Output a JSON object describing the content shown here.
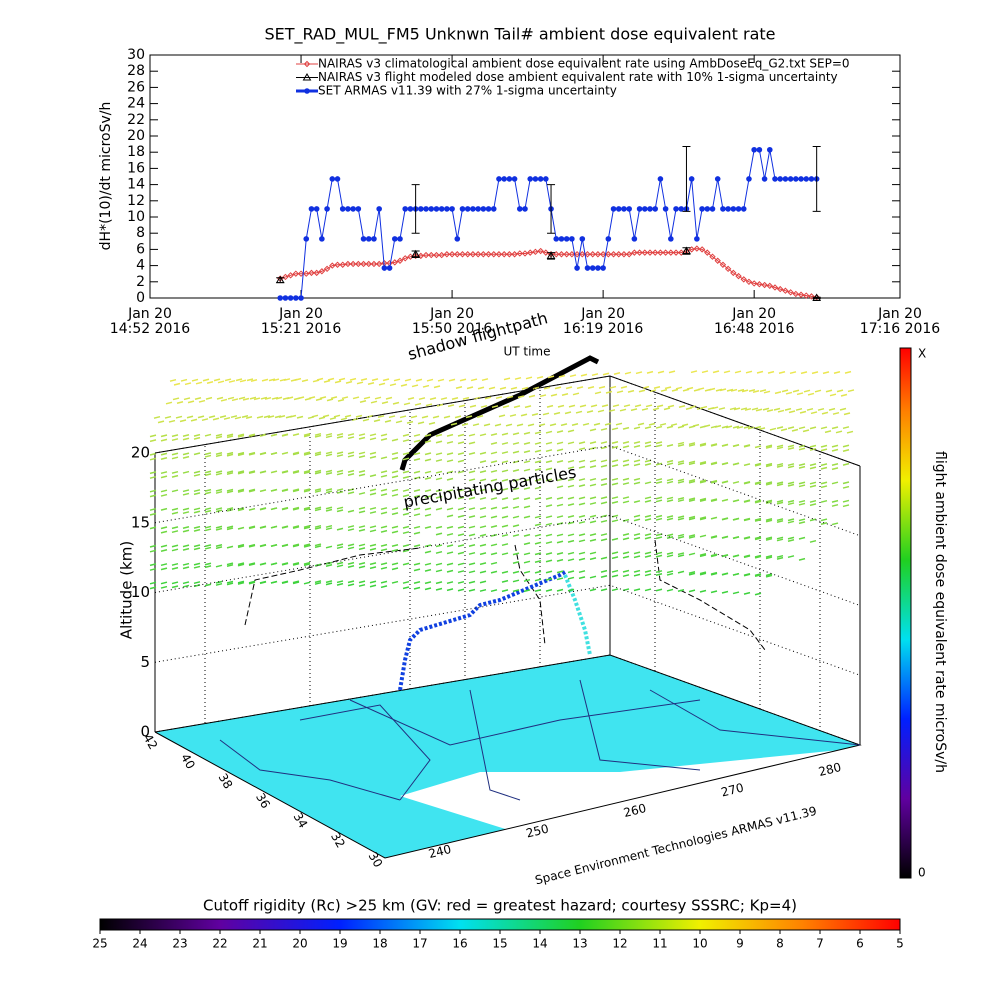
{
  "chart_data": {
    "type": "line",
    "title": "SET_RAD_MUL_FM5 Unknwn Tail#  ambient dose equivalent rate",
    "y_label": "dH*(10)/dt microSv/h",
    "x_label": "UT time",
    "x": [
      "15:17",
      "15:18",
      "15:19",
      "15:20",
      "15:21",
      "15:22",
      "15:23",
      "15:24",
      "15:25",
      "15:26",
      "15:27",
      "15:28",
      "15:29",
      "15:30",
      "15:31",
      "15:32",
      "15:33",
      "15:34",
      "15:35",
      "15:36",
      "15:37",
      "15:38",
      "15:39",
      "15:40",
      "15:41",
      "15:42",
      "15:43",
      "15:44",
      "15:45",
      "15:46",
      "15:47",
      "15:48",
      "15:49",
      "15:50",
      "15:51",
      "15:52",
      "15:53",
      "15:54",
      "15:55",
      "15:56",
      "15:57",
      "15:58",
      "15:59",
      "16:00",
      "16:01",
      "16:02",
      "16:03",
      "16:04",
      "16:05",
      "16:06",
      "16:07",
      "16:08",
      "16:09",
      "16:10",
      "16:11",
      "16:12",
      "16:13",
      "16:14",
      "16:15",
      "16:16",
      "16:17",
      "16:18",
      "16:19",
      "16:20",
      "16:21",
      "16:22",
      "16:23",
      "16:24",
      "16:25",
      "16:26",
      "16:27",
      "16:28",
      "16:29",
      "16:30",
      "16:31",
      "16:32",
      "16:33",
      "16:34",
      "16:35",
      "16:36",
      "16:37",
      "16:38",
      "16:39",
      "16:40",
      "16:41",
      "16:42",
      "16:43",
      "16:44",
      "16:45",
      "16:46",
      "16:47",
      "16:48",
      "16:49",
      "16:50",
      "16:51",
      "16:52",
      "16:53",
      "16:54",
      "16:55",
      "16:56",
      "16:57",
      "16:58",
      "16:59",
      "17:00"
    ],
    "xlim": [
      "14:52",
      "17:16"
    ],
    "xticks": [
      {
        "value": "14:52",
        "label": [
          "Jan 20",
          "14:52 2016"
        ]
      },
      {
        "value": "15:21",
        "label": [
          "Jan 20",
          "15:21 2016"
        ]
      },
      {
        "value": "15:50",
        "label": [
          "Jan 20",
          "15:50 2016"
        ]
      },
      {
        "value": "16:19",
        "label": [
          "Jan 20",
          "16:19 2016"
        ]
      },
      {
        "value": "16:48",
        "label": [
          "Jan 20",
          "16:48 2016"
        ]
      },
      {
        "value": "17:16",
        "label": [
          "Jan 20",
          "17:16 2016"
        ]
      }
    ],
    "ylim": [
      0,
      30
    ],
    "yticks": [
      0,
      2,
      4,
      6,
      8,
      10,
      12,
      14,
      16,
      18,
      20,
      22,
      24,
      26,
      28,
      30
    ],
    "series": [
      {
        "name": "NAIRAS v3 climatological ambient dose equivalent rate using AmbDoseEq_G2.txt SEP=0",
        "color": "#e04040",
        "marker": "diamond",
        "line": true,
        "values": [
          2.4,
          2.6,
          2.8,
          3.0,
          3.0,
          3.0,
          3.1,
          3.1,
          3.3,
          3.6,
          4.0,
          4.1,
          4.1,
          4.2,
          4.2,
          4.2,
          4.2,
          4.2,
          4.2,
          4.2,
          4.3,
          4.3,
          4.4,
          4.6,
          4.9,
          5.1,
          5.2,
          5.2,
          5.3,
          5.3,
          5.3,
          5.3,
          5.4,
          5.4,
          5.4,
          5.4,
          5.4,
          5.4,
          5.4,
          5.4,
          5.4,
          5.4,
          5.4,
          5.4,
          5.4,
          5.4,
          5.5,
          5.5,
          5.6,
          5.7,
          5.8,
          5.6,
          5.4,
          5.4,
          5.4,
          5.4,
          5.4,
          5.4,
          5.4,
          5.4,
          5.4,
          5.4,
          5.4,
          5.4,
          5.4,
          5.4,
          5.4,
          5.4,
          5.6,
          5.6,
          5.6,
          5.6,
          5.6,
          5.6,
          5.6,
          5.6,
          5.6,
          5.6,
          5.8,
          6.0,
          6.1,
          6.0,
          5.6,
          5.1,
          4.6,
          4.1,
          3.6,
          3.1,
          2.7,
          2.3,
          2.0,
          1.8,
          1.7,
          1.6,
          1.5,
          1.3,
          1.1,
          0.9,
          0.7,
          0.5,
          0.4,
          0.3,
          0.2,
          0.1
        ]
      },
      {
        "name": "NAIRAS v3 flight modeled dose ambient equivalent rate with 10% 1-sigma uncertainty",
        "color": "#000000",
        "marker": "triangle",
        "line": false,
        "x": [
          "15:17",
          "15:43",
          "16:09",
          "16:35",
          "17:00"
        ],
        "values": [
          2.2,
          5.4,
          5.2,
          5.8,
          0
        ],
        "errors": [
          0.3,
          0.4,
          0.4,
          0.4,
          0.1
        ]
      },
      {
        "name": "SET ARMAS v11.39 with 27% 1-sigma uncertainty",
        "color": "#1030e0",
        "marker": "circle",
        "line": true,
        "values": [
          0,
          0,
          0,
          0,
          0,
          7.3,
          11,
          11,
          7.3,
          11,
          14.7,
          14.7,
          11,
          11,
          11,
          11,
          7.3,
          7.3,
          7.3,
          11,
          3.7,
          3.7,
          7.3,
          7.3,
          11,
          11,
          11,
          11,
          11,
          11,
          11,
          11,
          11,
          11,
          7.3,
          11,
          11,
          11,
          11,
          11,
          11,
          11,
          14.7,
          14.7,
          14.7,
          14.7,
          11,
          11,
          14.7,
          14.7,
          14.7,
          14.7,
          11,
          7.3,
          7.3,
          7.3,
          7.3,
          3.7,
          7.3,
          3.7,
          3.7,
          3.7,
          3.7,
          7.3,
          11,
          11,
          11,
          11,
          7.3,
          11,
          11,
          11,
          11,
          14.7,
          11,
          7.3,
          11,
          11,
          11,
          14.7,
          7.3,
          11,
          11,
          11,
          14.7,
          11,
          11,
          11,
          11,
          11,
          14.7,
          18.3,
          18.3,
          14.7,
          18.3,
          14.7,
          14.7,
          14.7,
          14.7,
          14.7,
          14.7,
          14.7,
          14.7,
          14.7
        ]
      }
    ],
    "error_bars": {
      "x": [
        "15:43",
        "16:09",
        "16:35",
        "17:00"
      ],
      "values": [
        11,
        11,
        14.7,
        14.7
      ],
      "errors": [
        3,
        3,
        4,
        4
      ]
    }
  },
  "scene": {
    "z_label": "Altitude (km)",
    "z_ticks": [
      0,
      5,
      10,
      15,
      20
    ],
    "lat_ticks": [
      42,
      40,
      38,
      36,
      34,
      32,
      30
    ],
    "lon_ticks": [
      240,
      250,
      260,
      270,
      280
    ],
    "annotations": [
      "shadow flightpath",
      "precipitating particles"
    ],
    "credit": "Space Environment Technologies ARMAS v11.39"
  },
  "dose_colorbar": {
    "label": "flight ambient dose equivalent rate microSv/h",
    "max_label": "X",
    "min": 0
  },
  "rigidity_colorbar": {
    "title": "Cutoff rigidity (Rc) >25 km (GV: red = greatest hazard; courtesy SSSRC; Kp=4)",
    "range": [
      25,
      5
    ],
    "ticks": [
      25,
      24,
      23,
      22,
      21,
      20,
      19,
      18,
      17,
      16,
      15,
      14,
      13,
      12,
      11,
      10,
      9,
      8,
      7,
      6,
      5
    ]
  }
}
